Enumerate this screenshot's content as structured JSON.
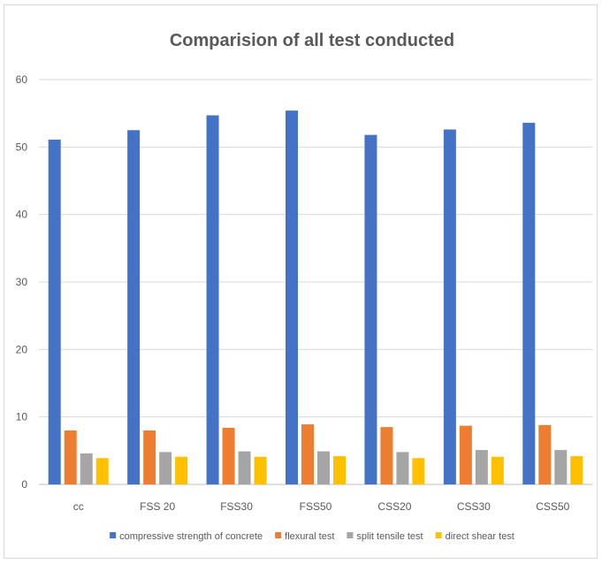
{
  "chart_data": {
    "type": "bar",
    "title": "Comparision of all test conducted",
    "xlabel": "",
    "ylabel": "",
    "ylim": [
      0,
      60
    ],
    "yticks": [
      "0",
      "10",
      "20",
      "30",
      "40",
      "50",
      "60"
    ],
    "categories": [
      "cc",
      "FSS 20",
      "FSS30",
      "FSS50",
      "CSS20",
      "CSS30",
      "CSS50"
    ],
    "series": [
      {
        "name": "compressive strength of concrete",
        "color": "#4472C4",
        "values": [
          51.1,
          52.5,
          54.7,
          55.4,
          51.8,
          52.6,
          53.6
        ]
      },
      {
        "name": "flexural test",
        "color": "#ED7D31",
        "values": [
          8.0,
          8.0,
          8.4,
          8.9,
          8.5,
          8.7,
          8.8
        ]
      },
      {
        "name": "split tensile test",
        "color": "#A5A5A5",
        "values": [
          4.6,
          4.8,
          4.9,
          4.9,
          4.8,
          5.1,
          5.1
        ]
      },
      {
        "name": "direct shear test",
        "color": "#FFC000",
        "values": [
          3.9,
          4.1,
          4.1,
          4.2,
          3.9,
          4.1,
          4.2
        ]
      }
    ],
    "grid": true,
    "legend_position": "bottom"
  }
}
